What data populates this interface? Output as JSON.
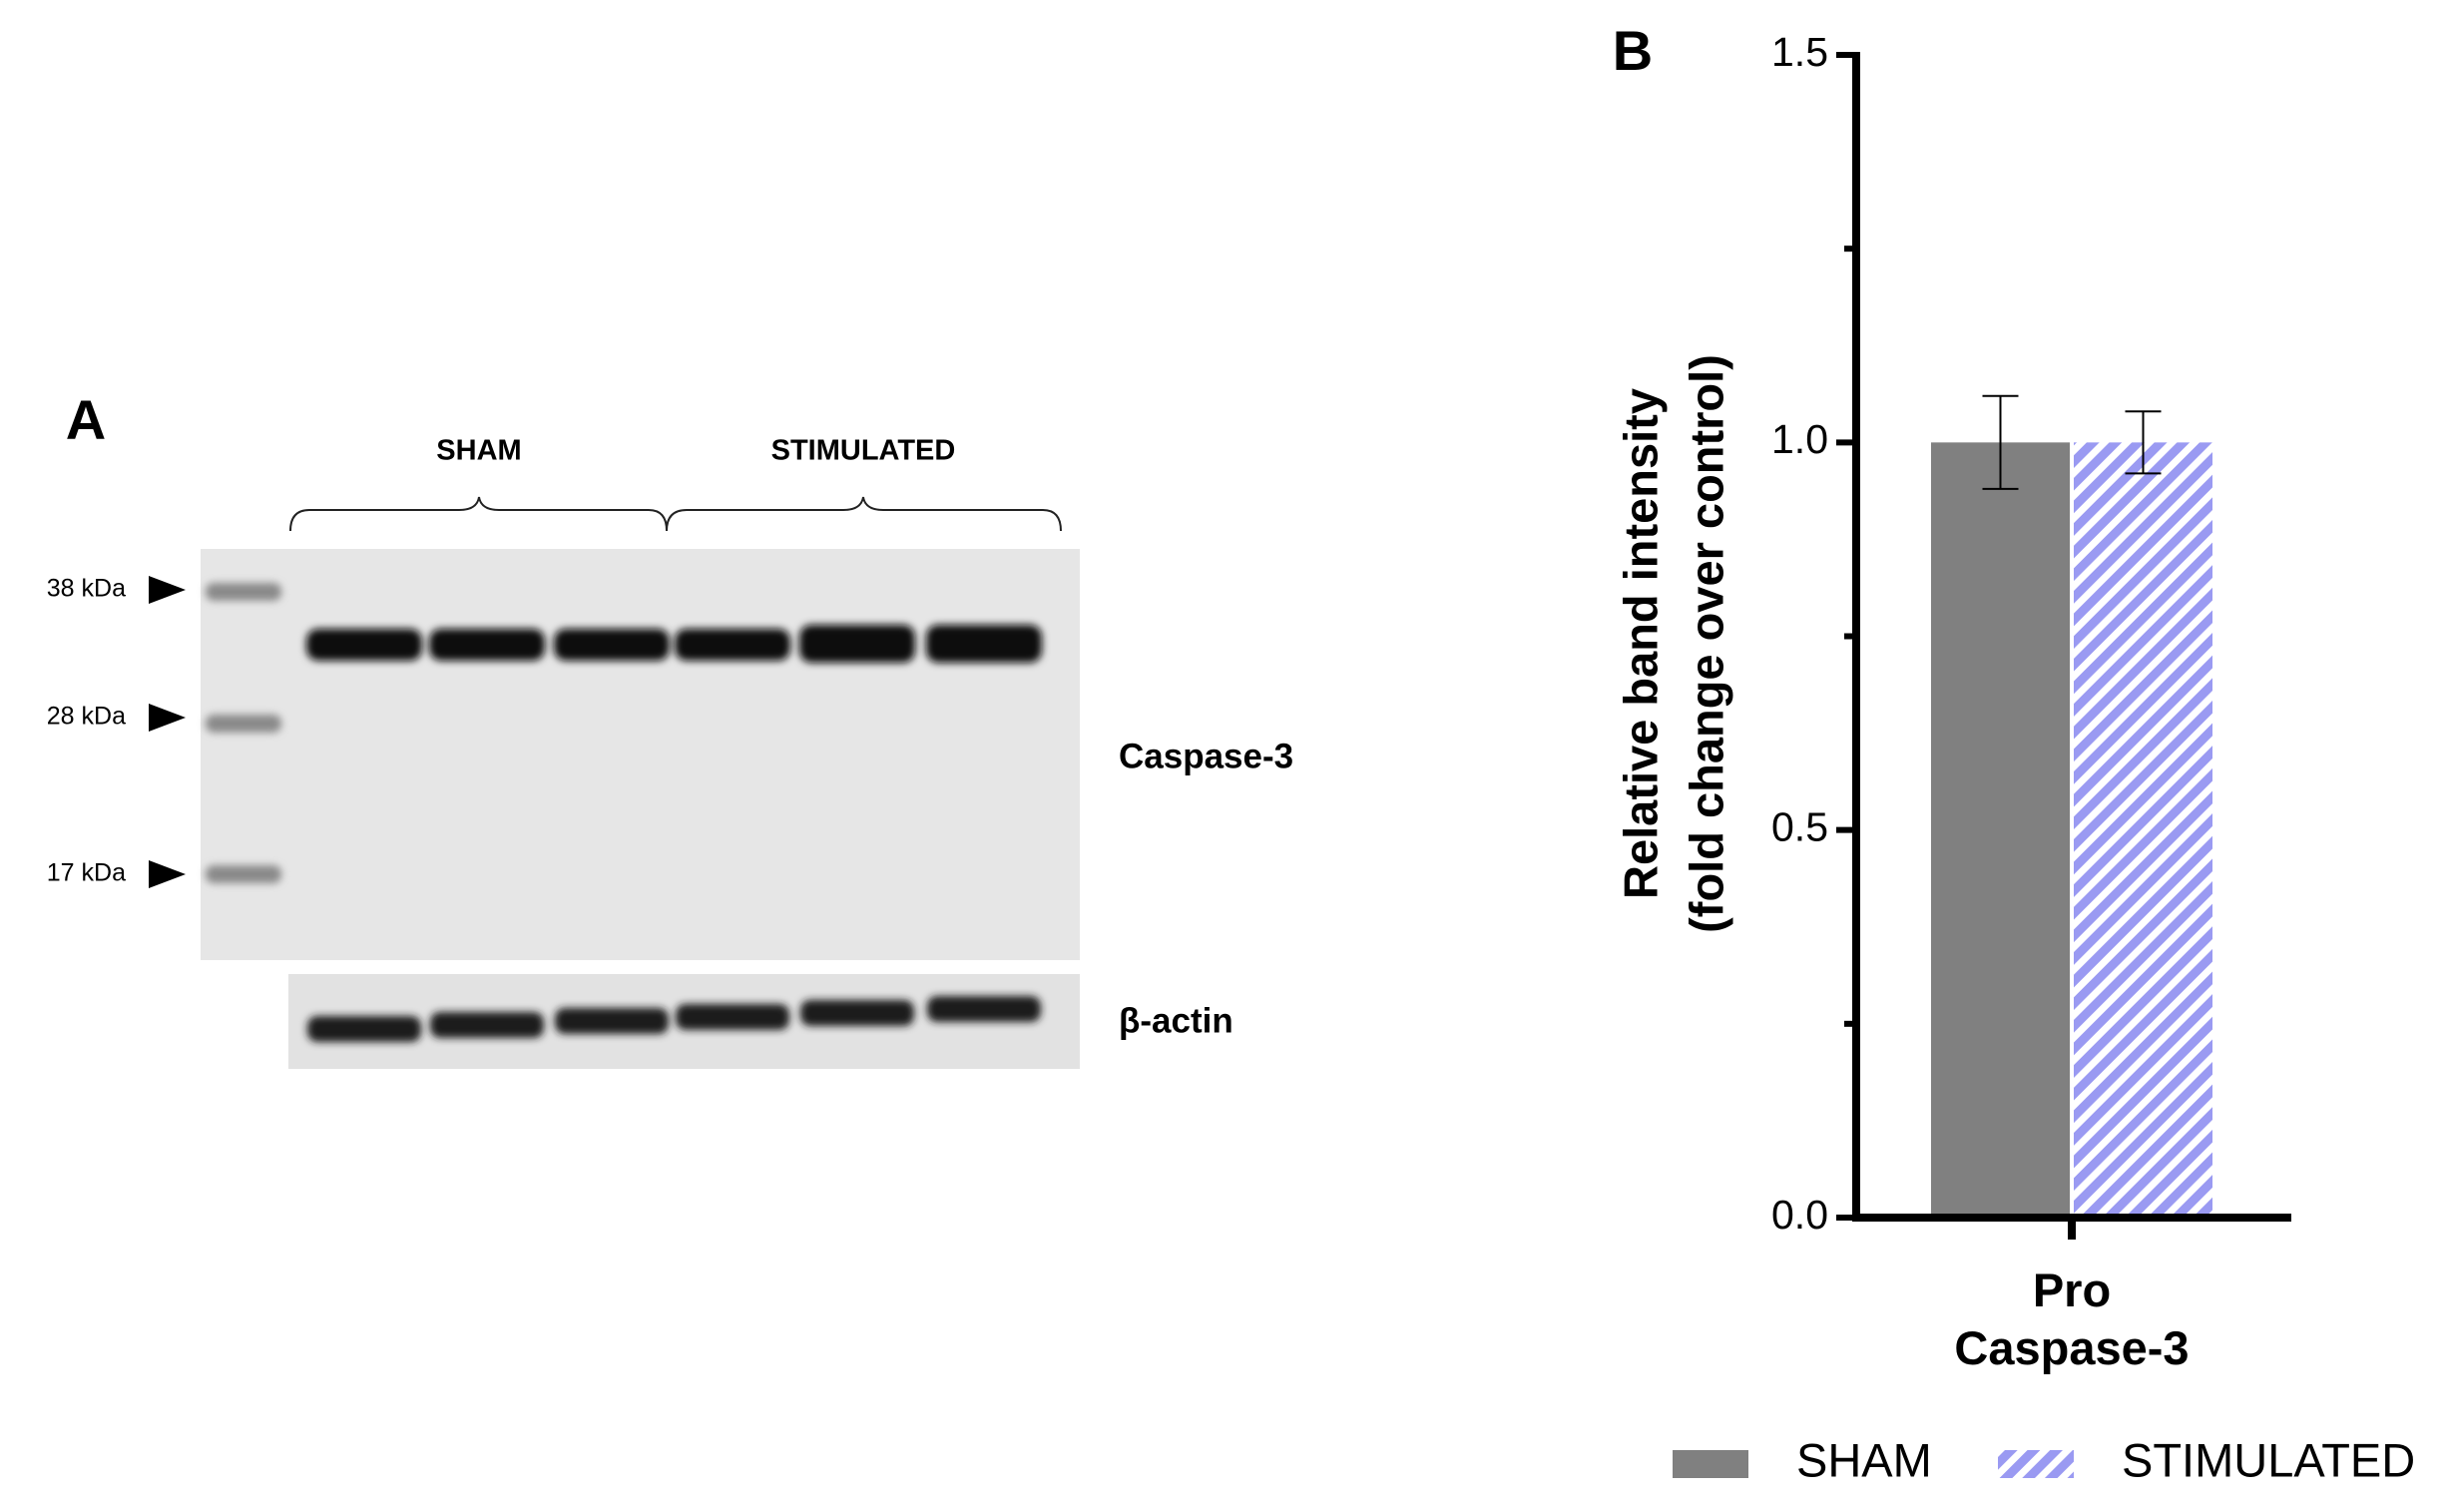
{
  "blot": {
    "panel_label": "A",
    "groups": [
      "SHAM",
      "STIMULATED"
    ],
    "markers": [
      "38 kDa",
      "28 kDa",
      "17 kDa"
    ],
    "bands": [
      "Caspase-3",
      "β-actin"
    ]
  },
  "chart_data": {
    "type": "bar",
    "panel_label": "B",
    "ylabel": [
      "Relative band intensity",
      "(fold change over control)"
    ],
    "categories": [
      "Pro Caspase-3"
    ],
    "series": [
      {
        "name": "SHAM",
        "color": "#808080",
        "values": [
          1.0
        ],
        "errors": [
          0.06
        ],
        "pattern": "solid"
      },
      {
        "name": "STIMULATED",
        "color": "#9a9af2",
        "values": [
          1.0
        ],
        "errors": [
          0.04
        ],
        "pattern": "hatch"
      }
    ],
    "ylim": [
      0,
      1.5
    ],
    "yticks": [
      {
        "value": 0,
        "label": "0.0"
      },
      0.5,
      {
        "value": 1,
        "label": "1.0"
      },
      1.5
    ],
    "yminorticks": [
      0.25,
      0.75,
      1.25
    ],
    "legend": "bottom"
  }
}
